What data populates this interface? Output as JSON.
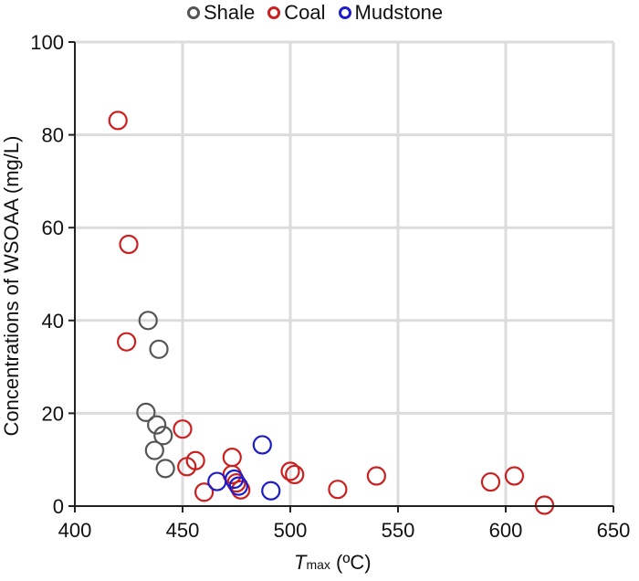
{
  "chart_data": {
    "type": "scatter",
    "title": "",
    "xlabel": {
      "var": "T",
      "sub": "max",
      "rest": " (ºC)"
    },
    "ylabel": "Concentrations of WSOAA (mg/L)",
    "xlim": [
      400,
      650
    ],
    "ylim": [
      0,
      100
    ],
    "xticks": [
      400,
      450,
      500,
      550,
      600,
      650
    ],
    "yticks": [
      0,
      20,
      40,
      60,
      80,
      100
    ],
    "grid": true,
    "legend_position": "top-center",
    "series": [
      {
        "name": "Shale",
        "color": "#555555",
        "points": [
          [
            434,
            40
          ],
          [
            439,
            33.8
          ],
          [
            433,
            20.2
          ],
          [
            438,
            17.5
          ],
          [
            441,
            15.2
          ],
          [
            437,
            12
          ],
          [
            442,
            8.1
          ]
        ]
      },
      {
        "name": "Coal",
        "color": "#cc1f1f",
        "points": [
          [
            420,
            83.1
          ],
          [
            425,
            56.4
          ],
          [
            424,
            35.4
          ],
          [
            450,
            16.6
          ],
          [
            452,
            8.5
          ],
          [
            456,
            9.8
          ],
          [
            460,
            3
          ],
          [
            473,
            10.5
          ],
          [
            473,
            6.8
          ],
          [
            475,
            5
          ],
          [
            477,
            3.5
          ],
          [
            500,
            7.5
          ],
          [
            502,
            6.8
          ],
          [
            522,
            3.6
          ],
          [
            540,
            6.5
          ],
          [
            593,
            5.2
          ],
          [
            604,
            6.5
          ],
          [
            618,
            0.2
          ]
        ]
      },
      {
        "name": "Mudstone",
        "color": "#1c1ccc",
        "points": [
          [
            466,
            5.3
          ],
          [
            474,
            5.8
          ],
          [
            476,
            4.3
          ],
          [
            487,
            13.2
          ],
          [
            491,
            3.3
          ]
        ]
      }
    ]
  }
}
